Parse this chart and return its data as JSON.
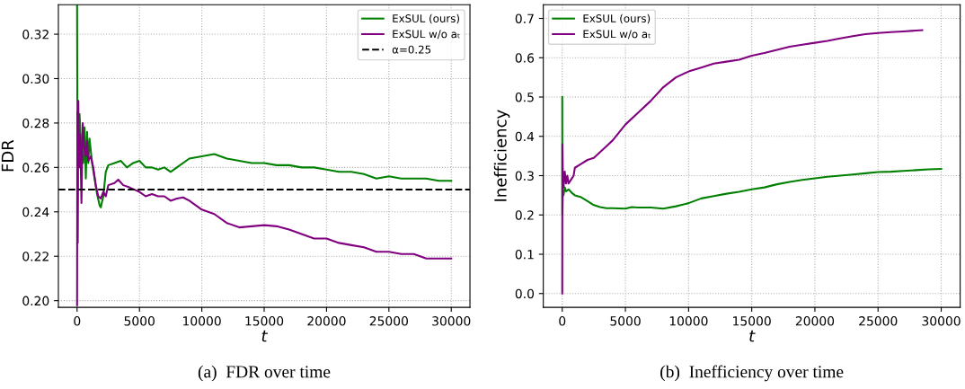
{
  "chart_data": [
    {
      "type": "line",
      "xlabel": "t",
      "ylabel": "FDR",
      "xlim": [
        -1500,
        31500
      ],
      "ylim": [
        0.197,
        0.3333
      ],
      "xticks": [
        0,
        5000,
        10000,
        15000,
        20000,
        25000,
        30000
      ],
      "yticks": [
        {
          "value": 0.2,
          "label": "0.20"
        },
        {
          "value": 0.22,
          "label": "0.22"
        },
        {
          "value": 0.24,
          "label": "0.24"
        },
        {
          "value": 0.26,
          "label": "0.26"
        },
        {
          "value": 0.28,
          "label": "0.28"
        },
        {
          "value": 0.3,
          "label": "0.30"
        },
        {
          "value": 0.32,
          "label": "0.32"
        }
      ],
      "grid": true,
      "legend": "top right",
      "annotations": [
        "(a)  FDR over time"
      ],
      "ref_lines": [
        {
          "axis": "y",
          "value": 0.25,
          "label": "α=0.25",
          "color": "#000000",
          "line_style": "dashed"
        }
      ],
      "series": [
        {
          "name": "ExSUL (ours)",
          "color": "#008000",
          "x": [
            0,
            20,
            60,
            100,
            200,
            350,
            500,
            600,
            700,
            800,
            900,
            1000,
            1200,
            1400,
            1600,
            1800,
            1900,
            2100,
            2300,
            2500,
            3000,
            3500,
            4000,
            4500,
            5000,
            5500,
            6000,
            6500,
            7000,
            7500,
            8000,
            9000,
            10000,
            11000,
            12000,
            13000,
            14000,
            15000,
            16000,
            17000,
            18000,
            19000,
            20000,
            21000,
            22000,
            23000,
            24000,
            25000,
            26000,
            27000,
            28000,
            29000,
            30000
          ],
          "values": [
            0.3333,
            0.29,
            0.226,
            0.27,
            0.284,
            0.265,
            0.262,
            0.278,
            0.255,
            0.276,
            0.262,
            0.273,
            0.262,
            0.255,
            0.248,
            0.243,
            0.242,
            0.247,
            0.258,
            0.261,
            0.262,
            0.263,
            0.26,
            0.262,
            0.263,
            0.26,
            0.26,
            0.259,
            0.26,
            0.258,
            0.26,
            0.264,
            0.265,
            0.266,
            0.264,
            0.263,
            0.262,
            0.262,
            0.261,
            0.261,
            0.26,
            0.26,
            0.259,
            0.258,
            0.258,
            0.257,
            0.255,
            0.256,
            0.255,
            0.255,
            0.255,
            0.254,
            0.254
          ]
        },
        {
          "name": "ExSUL w/o aₜ",
          "color": "#800080",
          "x": [
            0,
            20,
            60,
            100,
            150,
            250,
            350,
            450,
            550,
            700,
            800,
            900,
            1100,
            1300,
            1500,
            1700,
            1900,
            2100,
            2300,
            2500,
            3000,
            3300,
            3700,
            4200,
            4600,
            5000,
            5500,
            6000,
            6500,
            7000,
            7500,
            8000,
            8500,
            9000,
            9500,
            10000,
            11000,
            12000,
            13000,
            14000,
            15000,
            16000,
            17000,
            18000,
            19000,
            20000,
            21000,
            22000,
            23000,
            24000,
            25000,
            26000,
            27000,
            28000,
            29000,
            30000
          ],
          "values": [
            0.198,
            0.285,
            0.28,
            0.29,
            0.26,
            0.275,
            0.244,
            0.28,
            0.27,
            0.265,
            0.272,
            0.263,
            0.265,
            0.26,
            0.252,
            0.247,
            0.246,
            0.249,
            0.247,
            0.252,
            0.253,
            0.2545,
            0.252,
            0.251,
            0.25,
            0.249,
            0.247,
            0.248,
            0.247,
            0.247,
            0.245,
            0.246,
            0.2465,
            0.245,
            0.243,
            0.241,
            0.239,
            0.235,
            0.233,
            0.2335,
            0.234,
            0.2335,
            0.232,
            0.23,
            0.228,
            0.228,
            0.226,
            0.225,
            0.224,
            0.222,
            0.222,
            0.221,
            0.221,
            0.219,
            0.219,
            0.219
          ]
        }
      ]
    },
    {
      "type": "line",
      "xlabel": "t",
      "ylabel": "Inefficiency",
      "xlim": [
        -1500,
        31500
      ],
      "ylim": [
        -0.035,
        0.735
      ],
      "xticks": [
        0,
        5000,
        10000,
        15000,
        20000,
        25000,
        30000
      ],
      "yticks": [
        {
          "value": 0,
          "label": "0.0"
        },
        0.1,
        0.2,
        0.3,
        0.4,
        0.5,
        0.6,
        0.7
      ],
      "grid": true,
      "legend": "top left",
      "annotations": [
        "(b)  Inefficiency over time"
      ],
      "series": [
        {
          "name": "ExSUL (ours)",
          "color": "#008000",
          "x": [
            0,
            10,
            50,
            100,
            200,
            300,
            500,
            800,
            1000,
            1500,
            2000,
            2500,
            3000,
            3500,
            4000,
            5000,
            5500,
            6000,
            7000,
            8000,
            9000,
            10000,
            11000,
            12000,
            13000,
            14000,
            15000,
            16000,
            17000,
            18000,
            19000,
            20000,
            21000,
            22000,
            23000,
            24000,
            25000,
            26000,
            27000,
            28000,
            29000,
            30000
          ],
          "values": [
            0.5,
            0.2,
            0.26,
            0.25,
            0.27,
            0.26,
            0.265,
            0.255,
            0.25,
            0.245,
            0.235,
            0.225,
            0.22,
            0.217,
            0.217,
            0.216,
            0.22,
            0.219,
            0.219,
            0.216,
            0.222,
            0.23,
            0.242,
            0.248,
            0.254,
            0.259,
            0.265,
            0.27,
            0.278,
            0.284,
            0.289,
            0.293,
            0.297,
            0.3,
            0.303,
            0.306,
            0.309,
            0.31,
            0.312,
            0.314,
            0.316,
            0.317
          ]
        },
        {
          "name": "ExSUL w/o aₜ",
          "color": "#800080",
          "x": [
            0,
            10,
            50,
            100,
            200,
            300,
            400,
            500,
            700,
            900,
            1000,
            1500,
            2000,
            2500,
            3000,
            3500,
            4000,
            4500,
            5000,
            6000,
            7000,
            8000,
            9000,
            10000,
            11000,
            12000,
            13000,
            14000,
            15000,
            16000,
            17000,
            18000,
            19000,
            20000,
            21000,
            22000,
            23000,
            24000,
            25000,
            26000,
            27000,
            28000,
            28500
          ],
          "values": [
            0.0,
            0.38,
            0.3,
            0.27,
            0.31,
            0.28,
            0.3,
            0.28,
            0.29,
            0.3,
            0.32,
            0.33,
            0.34,
            0.345,
            0.36,
            0.375,
            0.39,
            0.41,
            0.43,
            0.46,
            0.49,
            0.525,
            0.55,
            0.565,
            0.575,
            0.585,
            0.59,
            0.595,
            0.605,
            0.612,
            0.62,
            0.628,
            0.633,
            0.638,
            0.643,
            0.649,
            0.655,
            0.66,
            0.663,
            0.665,
            0.667,
            0.669,
            0.67
          ]
        }
      ]
    }
  ]
}
